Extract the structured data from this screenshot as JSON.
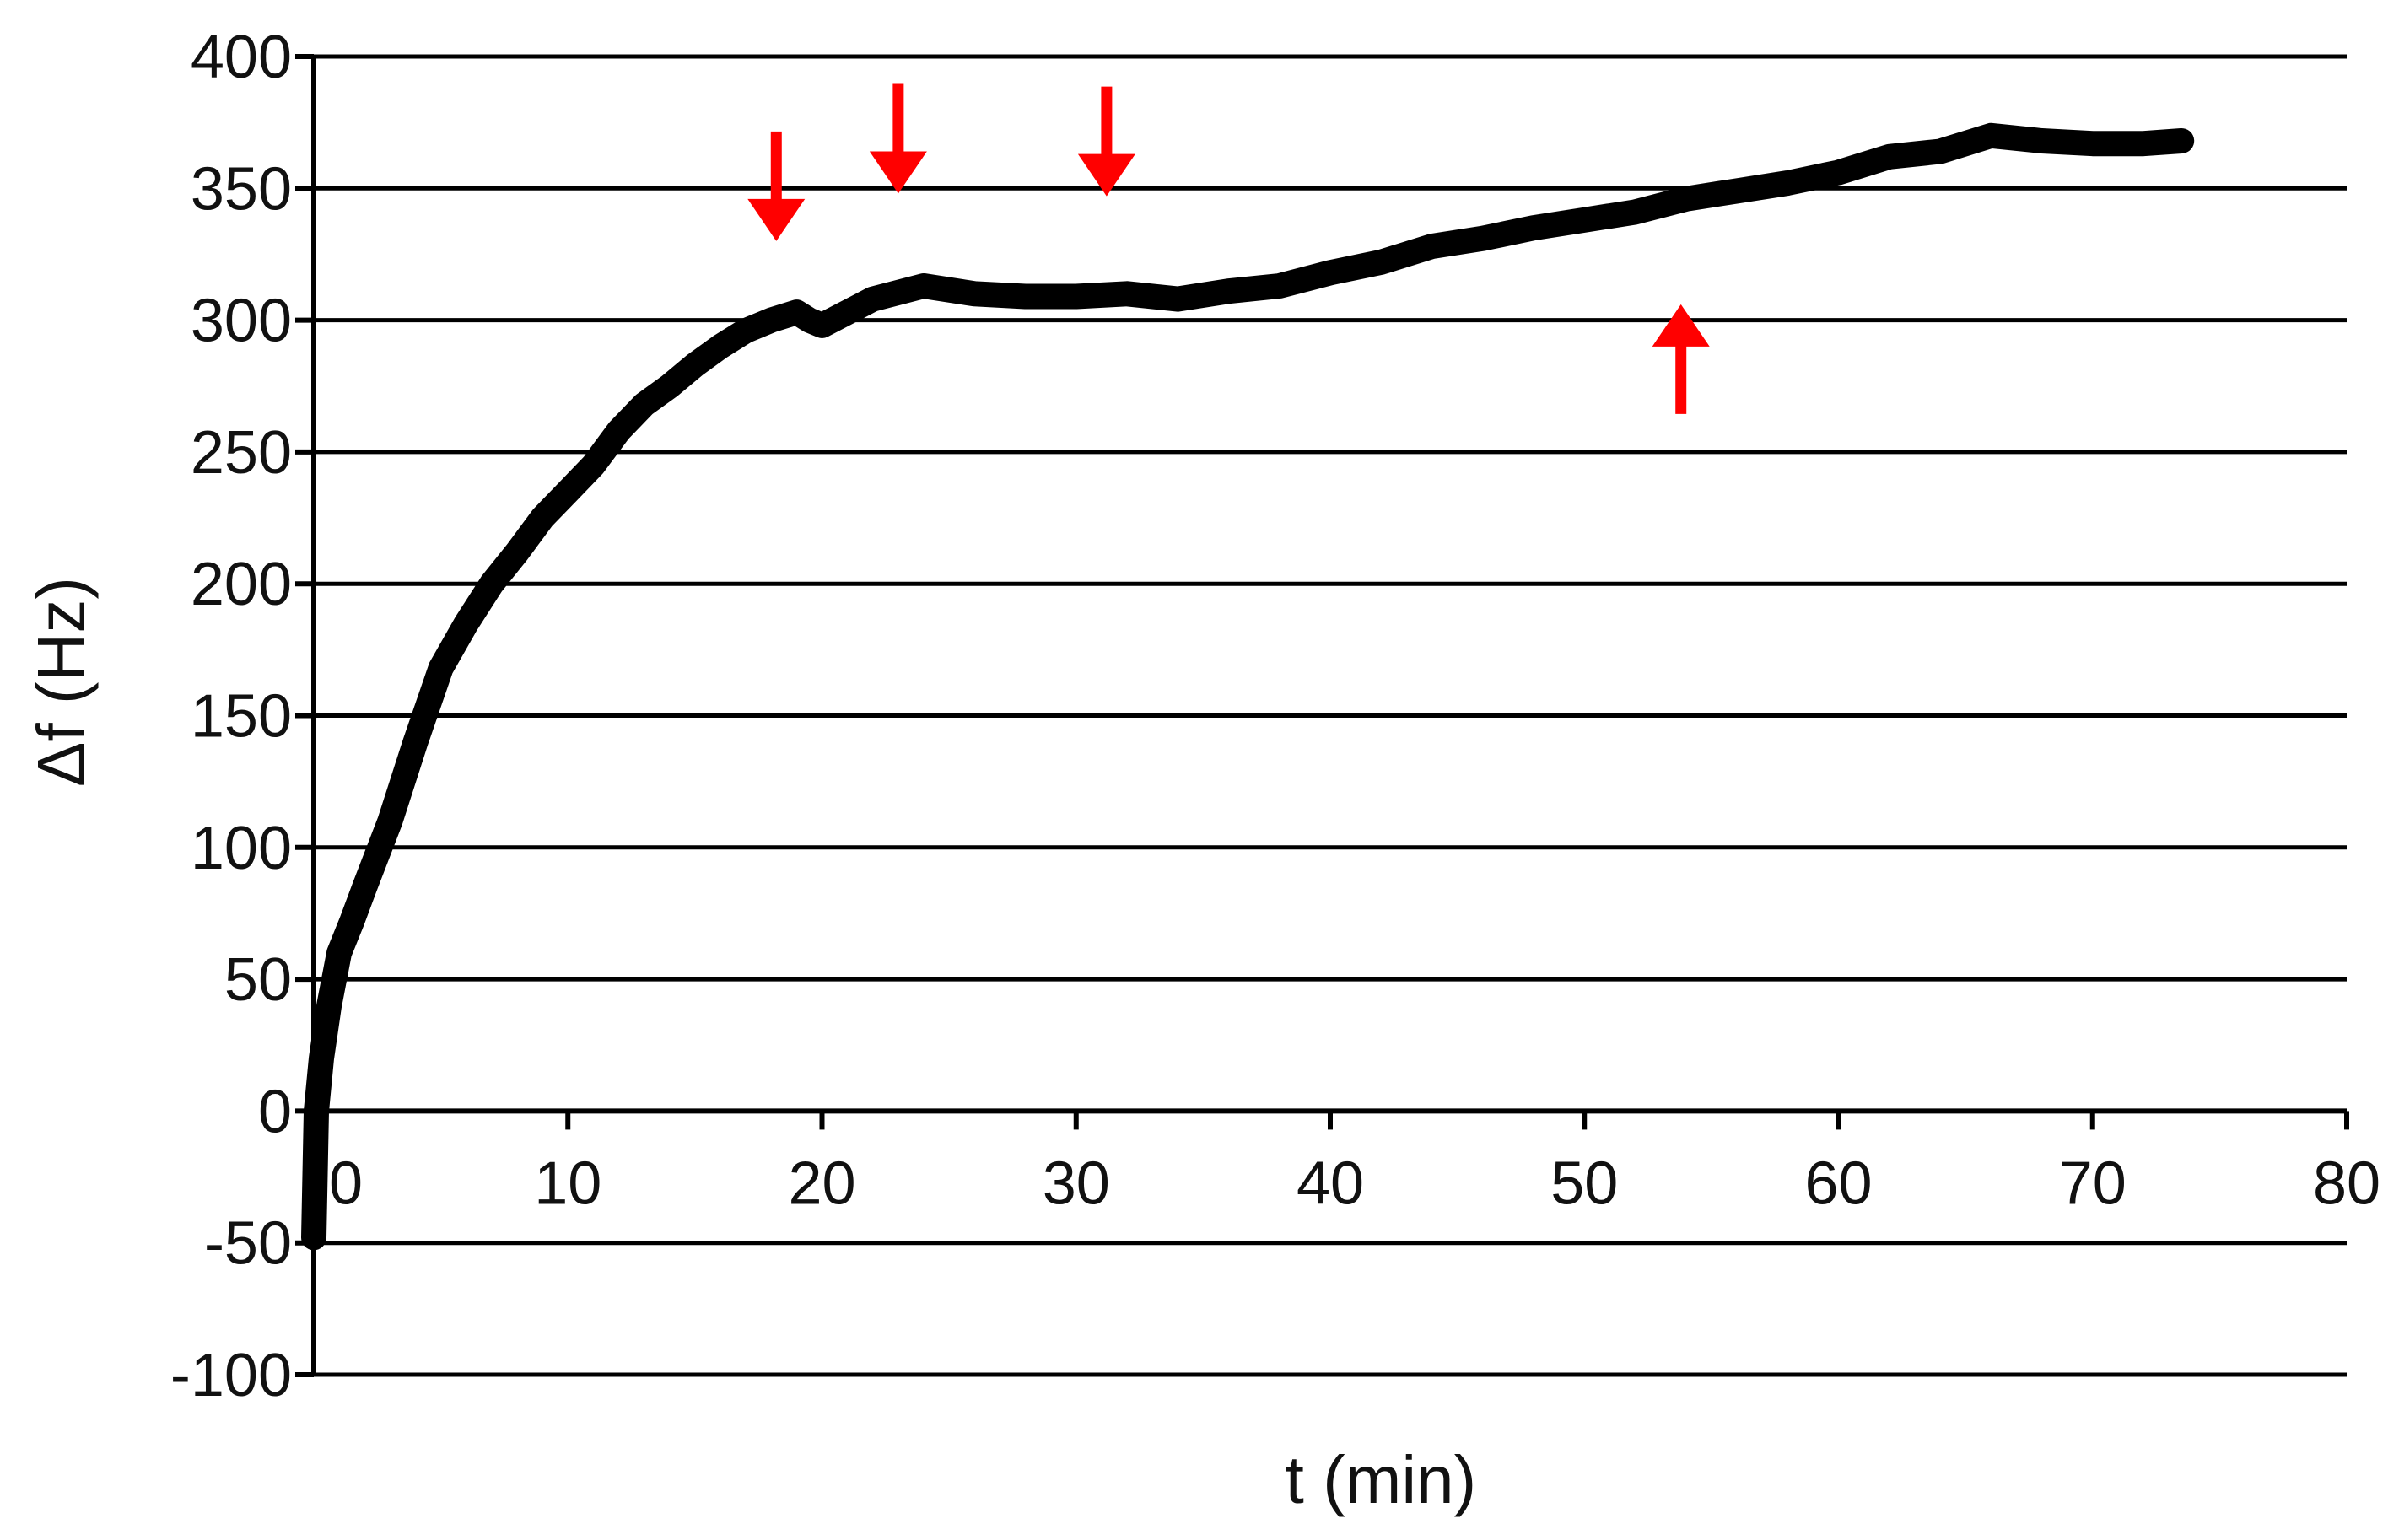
{
  "chart_data": {
    "type": "line",
    "title": "",
    "xlabel": "t (min)",
    "ylabel": "Δf (Hz)",
    "xlim": [
      0,
      80
    ],
    "ylim": [
      -100,
      400
    ],
    "x_ticks": [
      0,
      10,
      20,
      30,
      40,
      50,
      60,
      70,
      80
    ],
    "y_ticks": [
      400,
      350,
      300,
      250,
      200,
      150,
      100,
      50,
      0,
      -50,
      -100
    ],
    "grid": "horizontal",
    "legend": "none",
    "series": [
      {
        "color": "#000000",
        "x": [
          0,
          0.1,
          0.3,
          0.6,
          1,
          1.5,
          2,
          3,
          4,
          5,
          6,
          7,
          8,
          9,
          10,
          11,
          12,
          13,
          14,
          15,
          16,
          17,
          18,
          19,
          19.5,
          20,
          22,
          24,
          26,
          28,
          30,
          32,
          34,
          36,
          38,
          40,
          42,
          44,
          46,
          48,
          50,
          52,
          54,
          56,
          58,
          60,
          62,
          64,
          66,
          68,
          70,
          72,
          73.5
        ],
        "y": [
          -48,
          0,
          20,
          40,
          60,
          72,
          85,
          110,
          140,
          168,
          185,
          200,
          212,
          225,
          235,
          245,
          258,
          268,
          275,
          283,
          290,
          296,
          300,
          303,
          300,
          298,
          308,
          313,
          310,
          309,
          309,
          310,
          308,
          311,
          313,
          318,
          322,
          328,
          331,
          335,
          338,
          341,
          346,
          349,
          352,
          356,
          362,
          364,
          370,
          368,
          367,
          367,
          368
        ]
      }
    ],
    "annotations": [
      {
        "type": "arrow",
        "direction": "down",
        "x": 18.2,
        "y": 330
      },
      {
        "type": "arrow",
        "direction": "down",
        "x": 23,
        "y": 348
      },
      {
        "type": "arrow",
        "direction": "down",
        "x": 31.2,
        "y": 347
      },
      {
        "type": "arrow",
        "direction": "up",
        "x": 53.8,
        "y": 306
      }
    ]
  }
}
